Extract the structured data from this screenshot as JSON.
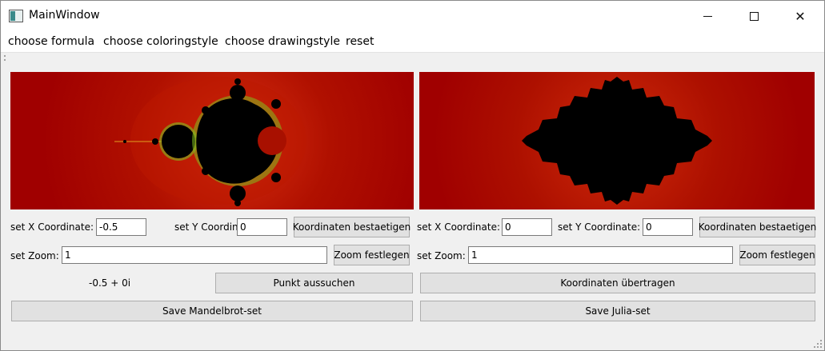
{
  "window": {
    "title": "MainWindow"
  },
  "menu": [
    "choose formula",
    "choose coloringstyle",
    "choose drawingstyle",
    "reset"
  ],
  "mandelbrot": {
    "x_label": "set X Coordinate:",
    "x_value": "-0.5",
    "y_label": "set Y Coordinate:",
    "y_value": "0",
    "confirm_button": "Koordinaten bestaetigen",
    "zoom_label": "set Zoom:",
    "zoom_value": "1",
    "zoom_button": "Zoom festlegen",
    "point_readout": "-0.5 + 0i",
    "pick_button": "Punkt aussuchen",
    "save_button": "Save Mandelbrot-set"
  },
  "julia": {
    "x_label": "set X Coordinate:",
    "x_value": "0",
    "y_label": "set Y Coordinate:",
    "y_value": "0",
    "confirm_button": "Koordinaten bestaetigen",
    "zoom_label": "set Zoom:",
    "zoom_value": "1",
    "zoom_button": "Zoom festlegen",
    "transfer_button": "Koordinaten übertragen",
    "save_button": "Save Julia-set"
  },
  "colors": {
    "fractal_bg": "#a30000",
    "fractal_inner": "#000000",
    "fractal_edge": "#7fbf1f"
  }
}
